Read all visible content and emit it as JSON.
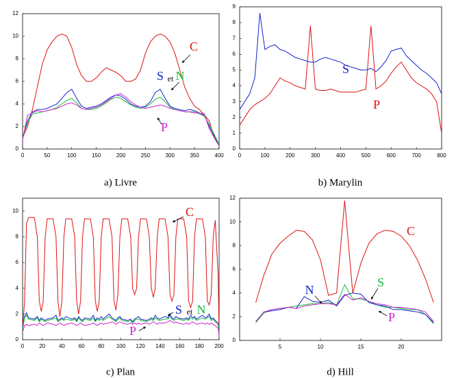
{
  "chart_data": [
    {
      "type": "line",
      "caption": "a) Livre",
      "x": [
        0,
        10,
        20,
        30,
        40,
        50,
        60,
        70,
        80,
        90,
        100,
        110,
        120,
        130,
        140,
        150,
        160,
        170,
        180,
        190,
        200,
        210,
        220,
        230,
        240,
        250,
        260,
        270,
        280,
        290,
        300,
        310,
        320,
        330,
        340,
        350,
        360,
        370,
        380,
        390,
        400
      ],
      "xlim": [
        0,
        400
      ],
      "xticks": [
        0,
        50,
        100,
        150,
        200,
        250,
        300,
        350,
        400
      ],
      "ylim": [
        0,
        12
      ],
      "yticks": [
        0,
        2,
        4,
        6,
        8,
        10,
        12
      ],
      "series": [
        {
          "name": "C",
          "color": "#dd1111",
          "values": [
            1,
            2,
            3.5,
            5.5,
            7.5,
            8.8,
            9.5,
            10,
            10.2,
            10,
            9,
            7.5,
            6.5,
            6,
            6,
            6.3,
            6.8,
            7.2,
            7,
            6.8,
            6.5,
            6,
            6,
            6.2,
            7,
            8.5,
            9.5,
            10,
            10.2,
            10,
            9.5,
            8.5,
            7,
            5.5,
            4.5,
            3.8,
            3.5,
            3,
            2.5,
            1,
            0.3
          ]
        },
        {
          "name": "S",
          "color": "#1122cc",
          "values": [
            1,
            2.5,
            3.3,
            3.5,
            3.5,
            3.6,
            3.8,
            4,
            4.5,
            5,
            5.3,
            4.5,
            3.8,
            3.6,
            3.7,
            3.8,
            4,
            4.3,
            4.6,
            4.8,
            4.7,
            4.4,
            4,
            3.8,
            3.7,
            3.8,
            4.2,
            5,
            5.3,
            4.5,
            3.8,
            3.6,
            3.5,
            3.4,
            3.5,
            3.4,
            3.2,
            3,
            2,
            1.2,
            0.3
          ]
        },
        {
          "name": "N",
          "color": "#11bb33",
          "values": [
            1,
            2.3,
            3.1,
            3.2,
            3.3,
            3.4,
            3.5,
            3.7,
            4,
            4.3,
            4.5,
            4.1,
            3.6,
            3.5,
            3.5,
            3.6,
            3.8,
            4.1,
            4.4,
            4.6,
            4.5,
            4.2,
            3.9,
            3.7,
            3.6,
            3.7,
            4,
            4.4,
            4.6,
            4.2,
            3.7,
            3.5,
            3.4,
            3.3,
            3.3,
            3.3,
            3.1,
            2.9,
            2.2,
            1.3,
            0.4
          ]
        },
        {
          "name": "P",
          "color": "#cc22cc",
          "values": [
            0.8,
            3,
            3.2,
            3.4,
            3.3,
            3.4,
            3.5,
            3.6,
            3.8,
            4,
            4.1,
            3.9,
            3.6,
            3.5,
            3.6,
            3.7,
            3.9,
            4.2,
            4.5,
            4.8,
            4.9,
            4.6,
            4.2,
            3.9,
            3.7,
            3.6,
            3.7,
            3.8,
            3.9,
            3.8,
            3.6,
            3.5,
            3.4,
            3.3,
            3.3,
            3.2,
            3.2,
            3.1,
            1.8,
            1,
            0.3
          ]
        }
      ],
      "annotations": [
        {
          "text": "et"
        }
      ]
    },
    {
      "type": "line",
      "caption": "b) Marylin",
      "x": [
        0,
        20,
        40,
        60,
        80,
        100,
        120,
        140,
        160,
        180,
        200,
        220,
        240,
        260,
        280,
        300,
        320,
        340,
        360,
        380,
        400,
        420,
        440,
        460,
        480,
        500,
        520,
        540,
        560,
        580,
        600,
        620,
        640,
        660,
        680,
        700,
        720,
        740,
        760,
        780,
        800
      ],
      "xlim": [
        0,
        800
      ],
      "xticks": [
        0,
        100,
        200,
        300,
        400,
        500,
        600,
        700,
        800
      ],
      "ylim": [
        0,
        9
      ],
      "yticks": [
        0,
        1,
        2,
        3,
        4,
        5,
        6,
        7,
        8,
        9
      ],
      "series": [
        {
          "name": "S",
          "color": "#1122cc",
          "values": [
            2.5,
            3,
            3.5,
            4.5,
            8.6,
            6.3,
            6.5,
            6.6,
            6.3,
            6.2,
            6,
            5.8,
            5.7,
            5.6,
            5.5,
            5.5,
            5.7,
            5.8,
            5.7,
            5.6,
            5.5,
            5.3,
            5.2,
            5.1,
            5,
            5,
            5.1,
            4.9,
            5.2,
            5.6,
            6.2,
            6.3,
            6.4,
            5.9,
            5.6,
            5.3,
            5,
            4.8,
            4.5,
            4.2,
            3.5
          ]
        },
        {
          "name": "P",
          "color": "#dd1111",
          "values": [
            1.5,
            2,
            2.5,
            2.8,
            3,
            3.2,
            3.5,
            4,
            4.5,
            4.3,
            4.2,
            4,
            3.9,
            3.8,
            7.8,
            3.8,
            3.7,
            3.7,
            3.8,
            3.7,
            3.6,
            3.6,
            3.6,
            3.6,
            3.7,
            3.8,
            7.8,
            3.8,
            4,
            4.3,
            4.8,
            5.2,
            5.5,
            5,
            4.5,
            4.2,
            4,
            3.8,
            3.5,
            3,
            1
          ]
        }
      ],
      "annotations": []
    },
    {
      "type": "line",
      "caption": "c) Plan",
      "x": [
        0,
        2,
        4,
        6,
        12,
        15,
        17,
        19,
        21,
        23,
        25,
        31,
        34,
        36,
        38,
        40,
        42,
        44,
        50,
        53,
        55,
        57,
        59,
        61,
        63,
        69,
        72,
        74,
        76,
        78,
        80,
        82,
        88,
        91,
        93,
        95,
        97,
        99,
        101,
        107,
        110,
        112,
        114,
        116,
        118,
        120,
        126,
        129,
        131,
        133,
        135,
        137,
        139,
        145,
        148,
        150,
        152,
        154,
        156,
        158,
        164,
        167,
        169,
        171,
        173,
        175,
        177,
        183,
        186,
        188,
        190,
        192,
        194,
        196,
        199,
        200
      ],
      "xlim": [
        0,
        200
      ],
      "xticks": [
        0,
        20,
        40,
        60,
        80,
        100,
        120,
        140,
        160,
        180,
        200
      ],
      "ylim": [
        0,
        11
      ],
      "yticks": [
        0,
        2,
        4,
        6,
        8,
        10
      ],
      "series": [
        {
          "name": "C",
          "color": "#dd1111",
          "values": [
            0.8,
            3,
            9,
            9.5,
            9.5,
            8,
            3,
            2.2,
            3,
            8,
            9.4,
            9.4,
            8,
            3,
            1.8,
            3,
            8,
            9.4,
            9.4,
            8,
            3,
            2,
            3,
            8,
            9.4,
            9.4,
            8,
            3,
            2.2,
            3,
            8,
            9.4,
            9.4,
            8,
            3,
            2.3,
            3.5,
            8,
            9.4,
            9.4,
            8,
            4,
            3.5,
            4,
            8,
            9.4,
            9.4,
            8,
            4,
            3.3,
            4,
            8,
            9.4,
            9.4,
            8,
            3.5,
            3,
            3.5,
            8,
            9.4,
            9.4,
            8,
            3,
            2.5,
            3,
            8,
            9.4,
            9.4,
            8,
            3,
            2.7,
            3.5,
            8,
            9.3,
            5,
            0.5
          ]
        },
        {
          "name": "S",
          "color": "#1122cc",
          "values": [
            0.8,
            1.8,
            2.1,
            1.7,
            1.6,
            1.8,
            1.5,
            1.7,
            1.6,
            1.5,
            1.6,
            1.7,
            1.9,
            1.5,
            1.6,
            1.7,
            1.6,
            1.8,
            1.6,
            1.7,
            1.5,
            1.8,
            1.6,
            1.5,
            1.7,
            1.6,
            1.9,
            1.5,
            1.7,
            1.6,
            1.8,
            1.6,
            2,
            1.7,
            1.6,
            1.5,
            1.7,
            1.8,
            1.6,
            1.5,
            1.6,
            1.4,
            1.6,
            1.7,
            1.8,
            1.6,
            1.5,
            1.6,
            1.7,
            1.6,
            1.9,
            1.7,
            1.6,
            1.8,
            1.7,
            2,
            1.7,
            1.6,
            1.8,
            1.7,
            1.6,
            1.7,
            1.6,
            1.9,
            1.7,
            1.8,
            1.6,
            1.9,
            1.7,
            1.8,
            2,
            1.6,
            1.7,
            1.5,
            1.3,
            0.6
          ]
        },
        {
          "name": "N",
          "color": "#11bb33",
          "values": [
            0.8,
            1.7,
            1.9,
            1.6,
            1.5,
            1.7,
            1.4,
            1.6,
            1.5,
            1.4,
            1.5,
            1.6,
            1.7,
            1.4,
            1.5,
            1.6,
            1.5,
            1.6,
            1.5,
            1.6,
            1.4,
            1.7,
            1.5,
            1.4,
            1.6,
            1.5,
            1.7,
            1.4,
            1.6,
            1.5,
            1.6,
            1.5,
            1.8,
            1.6,
            1.5,
            1.4,
            1.6,
            1.7,
            1.5,
            1.4,
            1.5,
            1.3,
            1.5,
            1.6,
            1.6,
            1.5,
            1.4,
            1.5,
            1.6,
            1.5,
            1.7,
            1.6,
            1.5,
            1.6,
            1.6,
            1.8,
            1.6,
            1.5,
            1.6,
            1.6,
            1.5,
            1.6,
            1.5,
            1.7,
            1.6,
            1.7,
            1.5,
            1.7,
            1.6,
            1.7,
            1.8,
            1.5,
            1.6,
            1.4,
            1.2,
            0.5
          ]
        },
        {
          "name": "P",
          "color": "#cc22cc",
          "values": [
            0.6,
            1.1,
            1.2,
            1.1,
            1.2,
            1.1,
            1.3,
            1.2,
            1.1,
            1.2,
            1.3,
            1.2,
            1.1,
            1.2,
            1.3,
            1.2,
            1.1,
            1.2,
            1.3,
            1.2,
            1.1,
            1.2,
            1.3,
            1.2,
            1.1,
            1.2,
            1.3,
            1.2,
            1.1,
            1.2,
            1.3,
            1.2,
            1.3,
            1.4,
            1.3,
            1.2,
            1.3,
            1.4,
            1.3,
            1.2,
            1.3,
            1.2,
            1.3,
            1.2,
            1.3,
            1.2,
            1.3,
            1.2,
            1.3,
            1.4,
            1.3,
            1.2,
            1.3,
            1.3,
            1.4,
            1.5,
            1.4,
            1.3,
            1.4,
            1.3,
            1.2,
            1.3,
            1.2,
            1.3,
            1.4,
            1.3,
            1.2,
            1.3,
            1.2,
            1.3,
            1.2,
            1.3,
            1.2,
            1.1,
            0.9,
            0.3
          ]
        }
      ],
      "annotations": [
        {
          "text": "et"
        }
      ]
    },
    {
      "type": "line",
      "caption": "d) Hill",
      "x": [
        2,
        3,
        4,
        5,
        6,
        7,
        8,
        9,
        10,
        11,
        12,
        13,
        14,
        15,
        16,
        17,
        18,
        19,
        20,
        21,
        22,
        23,
        24
      ],
      "xlim": [
        0,
        25
      ],
      "xticks": [
        5,
        10,
        15,
        20
      ],
      "ylim": [
        0,
        12
      ],
      "yticks": [
        0,
        2,
        4,
        6,
        8,
        10,
        12
      ],
      "series": [
        {
          "name": "C",
          "color": "#dd1111",
          "values": [
            3.2,
            5.5,
            7.3,
            8.2,
            8.8,
            9.3,
            9.2,
            8.5,
            6.8,
            3.8,
            4,
            11.8,
            4,
            6.5,
            8.2,
            9,
            9.3,
            9.2,
            8.8,
            8,
            6.8,
            5.2,
            3.2
          ]
        },
        {
          "name": "S",
          "color": "#11bb33",
          "values": [
            1.5,
            2.3,
            2.6,
            2.7,
            2.8,
            2.9,
            3,
            3.1,
            3.1,
            3.2,
            3,
            4.7,
            3.5,
            3.5,
            3.3,
            3,
            2.8,
            2.8,
            2.7,
            2.6,
            2.6,
            2.2,
            1.4
          ]
        },
        {
          "name": "N",
          "color": "#1122cc",
          "values": [
            1.6,
            2.4,
            2.5,
            2.6,
            2.8,
            2.7,
            3.7,
            3.3,
            3.2,
            3.4,
            2.9,
            3.8,
            4,
            3.9,
            3.2,
            3,
            2.9,
            2.6,
            2.6,
            2.5,
            2.4,
            2.2,
            1.5
          ]
        },
        {
          "name": "P",
          "color": "#cc22cc",
          "values": [
            1.6,
            2.4,
            2.6,
            2.7,
            2.8,
            2.7,
            2.9,
            3,
            3.1,
            3.1,
            3,
            3.9,
            3.4,
            3.6,
            3.3,
            3.1,
            3,
            2.8,
            2.8,
            2.7,
            2.6,
            2.4,
            1.6
          ]
        }
      ],
      "annotations": []
    }
  ]
}
